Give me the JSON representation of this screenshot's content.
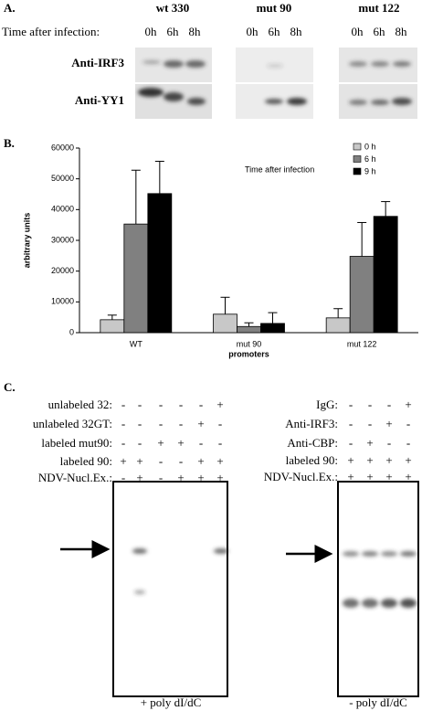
{
  "panel_a": {
    "label": "A.",
    "time_label": "Time after infection:",
    "groups": [
      {
        "name": "wt 330",
        "times": [
          "0h",
          "6h",
          "8h"
        ]
      },
      {
        "name": "mut 90",
        "times": [
          "0h",
          "6h",
          "8h"
        ]
      },
      {
        "name": "mut 122",
        "times": [
          "0h",
          "6h",
          "8h"
        ]
      }
    ],
    "rows": [
      "Anti-IRF3",
      "Anti-YY1"
    ]
  },
  "panel_b_label": "B.",
  "chart_data": {
    "type": "bar",
    "ylabel": "arbitrary units",
    "xlabel": "promoters",
    "legend_title": "Time after infection",
    "legend": "upper right",
    "categories": [
      "WT",
      "mut 90",
      "mut 122"
    ],
    "series": [
      {
        "name": "0 h",
        "color": "#c8c8c8",
        "values": [
          4200,
          6000,
          4800
        ],
        "errors": [
          1500,
          5500,
          3000
        ]
      },
      {
        "name": "6 h",
        "color": "#808080",
        "values": [
          35300,
          2000,
          24800
        ],
        "errors": [
          17500,
          1200,
          11000
        ]
      },
      {
        "name": "9 h",
        "color": "#000000",
        "values": [
          45200,
          3000,
          37800
        ],
        "errors": [
          10500,
          3500,
          4800
        ]
      }
    ],
    "ylim": [
      0,
      60000
    ],
    "yticks": [
      0,
      10000,
      20000,
      30000,
      40000,
      50000,
      60000
    ]
  },
  "panel_c": {
    "label": "C.",
    "left": {
      "rows": [
        {
          "label": "unlabeled 32:",
          "marks": [
            "-",
            "-",
            "-",
            "-",
            "-",
            "+"
          ]
        },
        {
          "label": "unlabeled 32GT:",
          "marks": [
            "-",
            "-",
            "-",
            "-",
            "+",
            "-"
          ]
        },
        {
          "label": "labeled mut90:",
          "marks": [
            "-",
            "-",
            "+",
            "+",
            "-",
            "-"
          ]
        },
        {
          "label": "labeled 90:",
          "marks": [
            "+",
            "+",
            "-",
            "-",
            "+",
            "+"
          ]
        },
        {
          "label": "NDV-Nucl.Ex.:",
          "marks": [
            "-",
            "+",
            "-",
            "+",
            "+",
            "+"
          ]
        }
      ],
      "caption": "+ poly dI/dC"
    },
    "right": {
      "rows": [
        {
          "label": "IgG:",
          "marks": [
            "-",
            "-",
            "-",
            "+"
          ]
        },
        {
          "label": "Anti-IRF3:",
          "marks": [
            "-",
            "-",
            "+",
            "-"
          ]
        },
        {
          "label": "Anti-CBP:",
          "marks": [
            "-",
            "+",
            "-",
            "-"
          ]
        },
        {
          "label": "labeled 90:",
          "marks": [
            "+",
            "+",
            "+",
            "+"
          ]
        },
        {
          "label": "NDV-Nucl.Ex.:",
          "marks": [
            "+",
            "+",
            "+",
            "+"
          ]
        }
      ],
      "caption": "- poly dI/dC"
    }
  }
}
